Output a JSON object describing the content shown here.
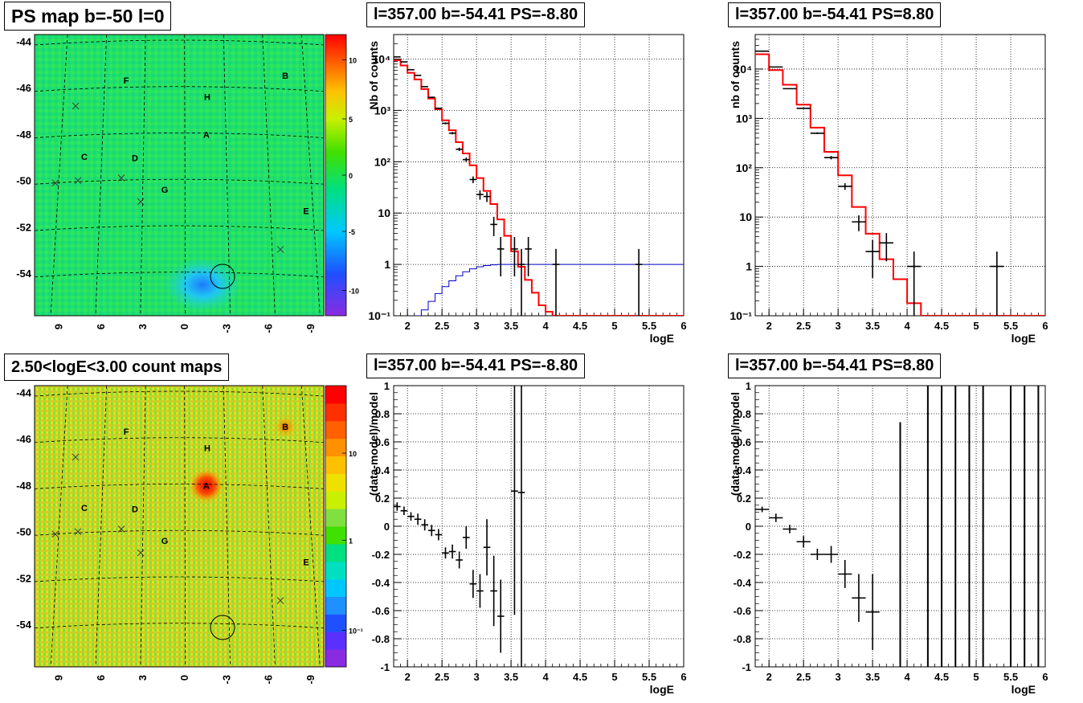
{
  "titles": {
    "map_top": "PS map b=-50 l=0",
    "map_bottom": "2.50<logE<3.00 count maps",
    "spec_left": "l=357.00 b=-54.41 PS=-8.80",
    "spec_right": "l=357.00 b=-54.41 PS=8.80",
    "ratio_left": "l=357.00 b=-54.41 PS=-8.80",
    "ratio_right": "l=357.00 b=-54.41 PS=8.80"
  },
  "colors": {
    "data": "#000000",
    "model": "#ff0000",
    "acceptance": "#0000cc",
    "grid": "#000000"
  },
  "maps": {
    "lat_ticks": [
      "-44",
      "-46",
      "-48",
      "-50",
      "-52",
      "-54"
    ],
    "lon_ticks": [
      "9",
      "6",
      "3",
      "0",
      "-3",
      "-6",
      "-9"
    ],
    "source_labels": [
      "A",
      "B",
      "C",
      "D",
      "E",
      "F",
      "G",
      "H"
    ],
    "top_colorbar": [
      "10",
      "5",
      "0",
      "-5",
      "-10"
    ],
    "bottom_colorbar": [
      "10",
      "1",
      "10⁻¹"
    ]
  },
  "chart_data": [
    {
      "type": "histogram",
      "panel": "spectrum-left",
      "title": "l=357.00 b=-54.41 PS=-8.80",
      "xlabel": "logE",
      "ylabel": "Nb of counts",
      "xlim": [
        1.8,
        6.0
      ],
      "ylim": [
        0.1,
        30000
      ],
      "yscale": "log",
      "grid": true,
      "x_ticks": [
        "2",
        "2.5",
        "3",
        "3.5",
        "4",
        "4.5",
        "5",
        "5.5",
        "6"
      ],
      "y_ticks": [
        "10⁻¹",
        "1",
        "10",
        "10²",
        "10³",
        "10⁴"
      ],
      "data_points": [
        {
          "x": 1.85,
          "y": 11000
        },
        {
          "x": 1.95,
          "y": 8800
        },
        {
          "x": 2.05,
          "y": 6200
        },
        {
          "x": 2.15,
          "y": 4800
        },
        {
          "x": 2.25,
          "y": 2900
        },
        {
          "x": 2.35,
          "y": 1800
        },
        {
          "x": 2.45,
          "y": 1100
        },
        {
          "x": 2.55,
          "y": 560
        },
        {
          "x": 2.65,
          "y": 360
        },
        {
          "x": 2.75,
          "y": 175
        },
        {
          "x": 2.85,
          "y": 110
        },
        {
          "x": 2.95,
          "y": 45
        },
        {
          "x": 3.05,
          "y": 23
        },
        {
          "x": 3.15,
          "y": 21
        },
        {
          "x": 3.25,
          "y": 6
        },
        {
          "x": 3.35,
          "y": 2
        },
        {
          "x": 3.55,
          "y": 2
        },
        {
          "x": 3.65,
          "y": 1
        },
        {
          "x": 3.75,
          "y": 2
        },
        {
          "x": 4.15,
          "y": 1
        },
        {
          "x": 5.35,
          "y": 1
        }
      ],
      "model_edges": [
        1.8,
        1.9,
        2.0,
        2.1,
        2.2,
        2.3,
        2.4,
        2.5,
        2.6,
        2.7,
        2.8,
        2.9,
        3.0,
        3.1,
        3.2,
        3.3,
        3.4,
        3.5,
        3.6,
        3.7,
        3.8,
        3.9,
        4.0,
        4.1,
        6.0
      ],
      "model_values": [
        9500,
        7500,
        5400,
        4000,
        2600,
        1700,
        1050,
        640,
        410,
        240,
        145,
        85,
        48,
        27,
        15,
        7.5,
        3.6,
        1.8,
        0.9,
        0.5,
        0.28,
        0.16,
        0.12,
        0.1
      ],
      "acceptance_edges": [
        2.1,
        2.2,
        2.3,
        2.4,
        2.5,
        2.6,
        2.7,
        2.8,
        2.9,
        3.0,
        3.1,
        3.2,
        3.3,
        6.0
      ],
      "acceptance_values": [
        0.1,
        0.13,
        0.19,
        0.27,
        0.37,
        0.48,
        0.6,
        0.72,
        0.82,
        0.9,
        0.95,
        0.98,
        1.0
      ]
    },
    {
      "type": "histogram",
      "panel": "spectrum-right",
      "title": "l=357.00 b=-54.41 PS=8.80",
      "xlabel": "logE",
      "ylabel": "nb of counts",
      "xlim": [
        1.8,
        6.0
      ],
      "ylim": [
        0.1,
        50000
      ],
      "yscale": "log",
      "grid": true,
      "x_ticks": [
        "2",
        "2.5",
        "3",
        "3.5",
        "4",
        "4.5",
        "5",
        "5.5",
        "6"
      ],
      "y_ticks": [
        "10⁻¹",
        "1",
        "10",
        "10²",
        "10³",
        "10⁴"
      ],
      "data_points": [
        {
          "x": 1.9,
          "y": 23000
        },
        {
          "x": 2.1,
          "y": 11000
        },
        {
          "x": 2.3,
          "y": 4000
        },
        {
          "x": 2.5,
          "y": 1600
        },
        {
          "x": 2.7,
          "y": 500
        },
        {
          "x": 2.9,
          "y": 160
        },
        {
          "x": 3.1,
          "y": 42
        },
        {
          "x": 3.3,
          "y": 8
        },
        {
          "x": 3.5,
          "y": 2
        },
        {
          "x": 3.7,
          "y": 3
        },
        {
          "x": 4.1,
          "y": 1
        },
        {
          "x": 5.3,
          "y": 1
        }
      ],
      "model_edges": [
        1.8,
        2.0,
        2.2,
        2.4,
        2.6,
        2.8,
        3.0,
        3.2,
        3.4,
        3.6,
        3.8,
        4.0,
        4.2,
        6.0
      ],
      "model_values": [
        20000,
        9500,
        4800,
        1900,
        650,
        210,
        70,
        16,
        4.6,
        1.4,
        0.55,
        0.18,
        0.1
      ],
      "acceptance_edges": [],
      "acceptance_values": []
    },
    {
      "type": "scatter",
      "panel": "ratio-left",
      "title": "l=357.00 b=-54.41 PS=-8.80",
      "xlabel": "logE",
      "ylabel": "(data-model)/model",
      "xlim": [
        1.8,
        6.0
      ],
      "ylim": [
        -1.0,
        1.0
      ],
      "grid": true,
      "x_ticks": [
        "2",
        "2.5",
        "3",
        "3.5",
        "4",
        "4.5",
        "5",
        "5.5",
        "6"
      ],
      "y_ticks": [
        "1",
        "0.8",
        "0.6",
        "0.4",
        "0.2",
        "0",
        "-0.2",
        "-0.4",
        "-0.6",
        "-0.8",
        "-1"
      ],
      "points": [
        {
          "x": 1.85,
          "y": 0.14,
          "err": 0.03
        },
        {
          "x": 1.95,
          "y": 0.11,
          "err": 0.03
        },
        {
          "x": 2.05,
          "y": 0.07,
          "err": 0.03
        },
        {
          "x": 2.15,
          "y": 0.05,
          "err": 0.04
        },
        {
          "x": 2.25,
          "y": 0.01,
          "err": 0.04
        },
        {
          "x": 2.35,
          "y": -0.03,
          "err": 0.04
        },
        {
          "x": 2.45,
          "y": -0.06,
          "err": 0.04
        },
        {
          "x": 2.55,
          "y": -0.19,
          "err": 0.04
        },
        {
          "x": 2.65,
          "y": -0.18,
          "err": 0.05
        },
        {
          "x": 2.75,
          "y": -0.24,
          "err": 0.06
        },
        {
          "x": 2.85,
          "y": -0.08,
          "err": 0.08
        },
        {
          "x": 2.95,
          "y": -0.41,
          "err": 0.1
        },
        {
          "x": 3.05,
          "y": -0.46,
          "err": 0.12
        },
        {
          "x": 3.15,
          "y": -0.15,
          "err": 0.2
        },
        {
          "x": 3.25,
          "y": -0.46,
          "err": 0.25
        },
        {
          "x": 3.35,
          "y": -0.64,
          "err": 0.26
        },
        {
          "x": 3.55,
          "y": 0.25,
          "err": 0.88
        },
        {
          "x": 3.65,
          "y": 0.24,
          "err": 1.5
        }
      ]
    },
    {
      "type": "scatter",
      "panel": "ratio-right",
      "title": "l=357.00 b=-54.41 PS=8.80",
      "xlabel": "logE",
      "ylabel": "(data-model)/model",
      "xlim": [
        1.8,
        6.0
      ],
      "ylim": [
        -1.0,
        1.0
      ],
      "grid": true,
      "x_ticks": [
        "2",
        "2.5",
        "3",
        "3.5",
        "4",
        "4.5",
        "5",
        "5.5",
        "6"
      ],
      "y_ticks": [
        "1",
        "0.8",
        "0.6",
        "0.4",
        "0.2",
        "0",
        "-0.2",
        "-0.4",
        "-0.6",
        "-0.8",
        "-1"
      ],
      "points": [
        {
          "x": 1.9,
          "y": 0.12,
          "err": 0.02
        },
        {
          "x": 2.1,
          "y": 0.06,
          "err": 0.03
        },
        {
          "x": 2.3,
          "y": -0.02,
          "err": 0.03
        },
        {
          "x": 2.5,
          "y": -0.11,
          "err": 0.04
        },
        {
          "x": 2.7,
          "y": -0.2,
          "err": 0.04
        },
        {
          "x": 2.9,
          "y": -0.2,
          "err": 0.06
        },
        {
          "x": 3.1,
          "y": -0.34,
          "err": 0.1
        },
        {
          "x": 3.3,
          "y": -0.51,
          "err": 0.17
        },
        {
          "x": 3.5,
          "y": -0.61,
          "err": 0.27
        }
      ],
      "vertical_lines": [
        {
          "x": 3.9,
          "y_top": 0.74
        },
        {
          "x": 4.3,
          "y_top": 1.0
        },
        {
          "x": 4.5,
          "y_top": 1.0
        },
        {
          "x": 4.7,
          "y_top": 1.0
        },
        {
          "x": 4.9,
          "y_top": 1.0
        },
        {
          "x": 5.1,
          "y_top": 1.0
        },
        {
          "x": 5.5,
          "y_top": 1.0
        },
        {
          "x": 5.7,
          "y_top": 1.0
        },
        {
          "x": 5.9,
          "y_top": 1.0
        }
      ]
    }
  ]
}
